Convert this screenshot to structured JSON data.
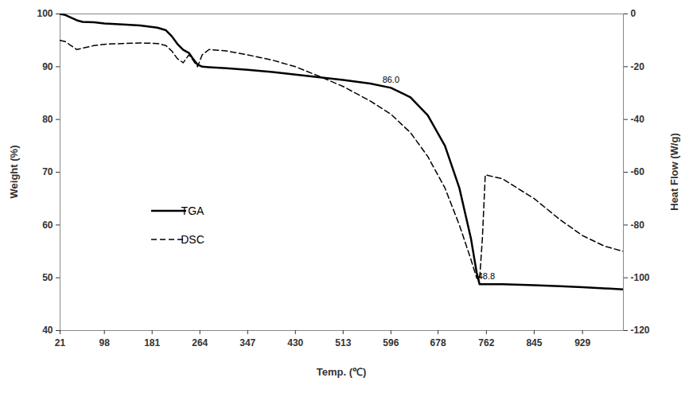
{
  "chart_data": {
    "type": "line",
    "x_label": "Temp. (℃)",
    "y_label": "Weight (%)",
    "y2_label": "Heat Flow (W/g)",
    "xlim": [
      21,
      1000
    ],
    "xticks": [
      21,
      98,
      181,
      264,
      347,
      430,
      513,
      596,
      678,
      762,
      845,
      929
    ],
    "ylim": [
      40,
      100
    ],
    "yticks": [
      40,
      50,
      60,
      70,
      80,
      90,
      100
    ],
    "y2lim": [
      -120,
      0
    ],
    "y2ticks": [
      -120,
      -100,
      -80,
      -60,
      -40,
      -20,
      0
    ],
    "legend": "lower left",
    "x": [
      21,
      30,
      40,
      50,
      60,
      80,
      98,
      130,
      160,
      190,
      205,
      215,
      225,
      235,
      245,
      252,
      260,
      268,
      280,
      310,
      347,
      390,
      430,
      470,
      513,
      560,
      596,
      630,
      660,
      690,
      715,
      735,
      745,
      750,
      755,
      760,
      790,
      845,
      890,
      929,
      967,
      1000
    ],
    "series": [
      {
        "name": "TGA",
        "color": "#000000",
        "line_style": "solid",
        "values": [
          100,
          99.8,
          99.3,
          98.8,
          98.5,
          98.4,
          98.2,
          98.0,
          97.8,
          97.4,
          96.9,
          95.8,
          94.3,
          93.2,
          92.6,
          91.5,
          90.4,
          90.0,
          89.9,
          89.7,
          89.4,
          89.0,
          88.5,
          88.0,
          87.5,
          86.8,
          86.0,
          84.2,
          80.8,
          75,
          67,
          57.5,
          51,
          48.8,
          48.8,
          48.8,
          48.8,
          48.6,
          48.4,
          48.2,
          48.0,
          47.8
        ]
      },
      {
        "name": "DSC",
        "color": "#000000",
        "line_style": "dashed",
        "axis": "y2",
        "values": [
          -10,
          -10.5,
          -12,
          -13.5,
          -13,
          -12,
          -11.5,
          -11.2,
          -11,
          -11.2,
          -12,
          -14,
          -17,
          -18.5,
          -15.5,
          -17.5,
          -20,
          -15.5,
          -13.5,
          -14,
          -15.5,
          -17.5,
          -20,
          -23.5,
          -27.5,
          -33,
          -38,
          -45,
          -54,
          -66,
          -80,
          -93,
          -100,
          -101,
          -85,
          -61,
          -62.5,
          -70,
          -78,
          -84,
          -88,
          -90
        ]
      }
    ],
    "annotations": [
      {
        "text": "86.0",
        "x": 596,
        "y": 86.0
      },
      {
        "text": "48.8",
        "x": 762,
        "y": 48.8
      }
    ]
  }
}
